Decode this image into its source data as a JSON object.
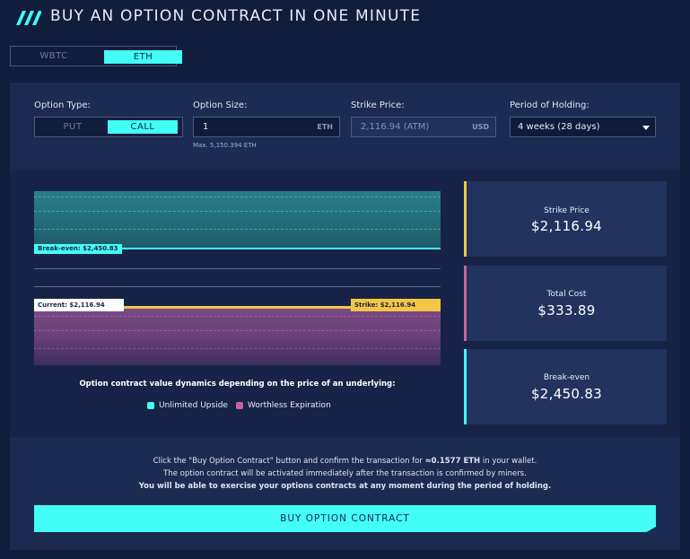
{
  "header": {
    "title": "BUY AN OPTION CONTRACT IN ONE MINUTE",
    "icon": "triple-slash-icon"
  },
  "asset_toggle": {
    "options": [
      "WBTC",
      "ETH"
    ],
    "selected": "ETH"
  },
  "form": {
    "option_type": {
      "label": "Option Type:",
      "options": [
        "PUT",
        "CALL"
      ],
      "selected": "CALL"
    },
    "option_size": {
      "label": "Option Size:",
      "value": "1",
      "unit": "ETH",
      "hint": "Max. 5,150.394 ETH"
    },
    "strike_price": {
      "label": "Strike Price:",
      "value": "2,116.94 (ATM)",
      "unit": "USD"
    },
    "period": {
      "label": "Period of Holding:",
      "value": "4 weeks (28 days)"
    }
  },
  "chart": {
    "break_even_tag": "Break-even: $2,450.83",
    "current_tag": "Current: $2,116.94",
    "strike_tag": "Strike: $2,116.94",
    "caption": "Option contract value dynamics depending on the price of an underlying:",
    "legend": [
      {
        "label": "Unlimited Upside",
        "color": "#43fdf7"
      },
      {
        "label": "Worthless Expiration",
        "color": "#c5649d"
      }
    ]
  },
  "stats": [
    {
      "label": "Strike Price",
      "value": "$2,116.94",
      "accent": "#f3c745"
    },
    {
      "label": "Total Cost",
      "value": "$333.89",
      "accent": "#c5649d"
    },
    {
      "label": "Break-even",
      "value": "$2,450.83",
      "accent": "#43fdf7"
    }
  ],
  "footer": {
    "line1_prefix": "Click the \"Buy Option Contract\" button and confirm the transaction for ",
    "line1_amount": "≈0.1577 ETH",
    "line1_suffix": " in your wallet.",
    "line2": "The option contract will be activated immediately after the transaction is confirmed by miners.",
    "line3": "You will be able to exercise your options contracts at any moment during the period of holding.",
    "buy_label": "BUY OPTION CONTRACT"
  }
}
